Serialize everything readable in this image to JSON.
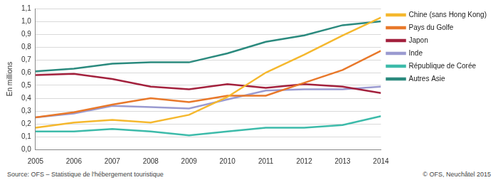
{
  "chart_data": {
    "type": "line",
    "y_label": "En millions",
    "categories": [
      "2005",
      "2006",
      "2007",
      "2008",
      "2009",
      "2010",
      "2011",
      "2012",
      "2013",
      "2014"
    ],
    "series": [
      {
        "name": "Chine (sans Hong Kong)",
        "color": "#f5b82e",
        "values": [
          0.17,
          0.21,
          0.23,
          0.21,
          0.27,
          0.41,
          0.6,
          0.74,
          0.89,
          1.03
        ]
      },
      {
        "name": "Pays du Golfe",
        "color": "#e8782a",
        "values": [
          0.25,
          0.29,
          0.35,
          0.4,
          0.37,
          0.42,
          0.42,
          0.52,
          0.62,
          0.77
        ]
      },
      {
        "name": "Japon",
        "color": "#a3213d",
        "values": [
          0.58,
          0.59,
          0.55,
          0.49,
          0.47,
          0.51,
          0.48,
          0.51,
          0.49,
          0.44
        ]
      },
      {
        "name": "Inde",
        "color": "#9a9ad0",
        "values": [
          0.25,
          0.28,
          0.34,
          0.33,
          0.32,
          0.39,
          0.46,
          0.47,
          0.47,
          0.49
        ]
      },
      {
        "name": "République de Corée",
        "color": "#3dbbaa",
        "values": [
          0.14,
          0.14,
          0.16,
          0.14,
          0.11,
          0.14,
          0.17,
          0.17,
          0.19,
          0.26
        ]
      },
      {
        "name": "Autres Asie",
        "color": "#2b8a7e",
        "values": [
          0.61,
          0.63,
          0.67,
          0.68,
          0.68,
          0.75,
          0.84,
          0.89,
          0.97,
          1.0
        ]
      }
    ],
    "ylim": [
      0,
      1.1
    ],
    "yticks": [
      {
        "value": 0,
        "label": "0,0"
      },
      {
        "value": 0.1,
        "label": "0,1"
      },
      {
        "value": 0.2,
        "label": "0,2"
      },
      {
        "value": 0.3,
        "label": "0,3"
      },
      {
        "value": 0.4,
        "label": "0,4"
      },
      {
        "value": 0.5,
        "label": "0,5"
      },
      {
        "value": 0.6,
        "label": "0,6"
      },
      {
        "value": 0.7,
        "label": "0,7"
      },
      {
        "value": 0.8,
        "label": "0,8"
      },
      {
        "value": 0.9,
        "label": "0,9"
      },
      {
        "value": 1.0,
        "label": "1,0"
      },
      {
        "value": 1.1,
        "label": "1,1"
      }
    ],
    "grid": true,
    "legend": "right",
    "annotations": [
      "Source: OFS – Statistique de l'hébergement touristique",
      "© OFS, Neuchâtel 2015"
    ]
  }
}
